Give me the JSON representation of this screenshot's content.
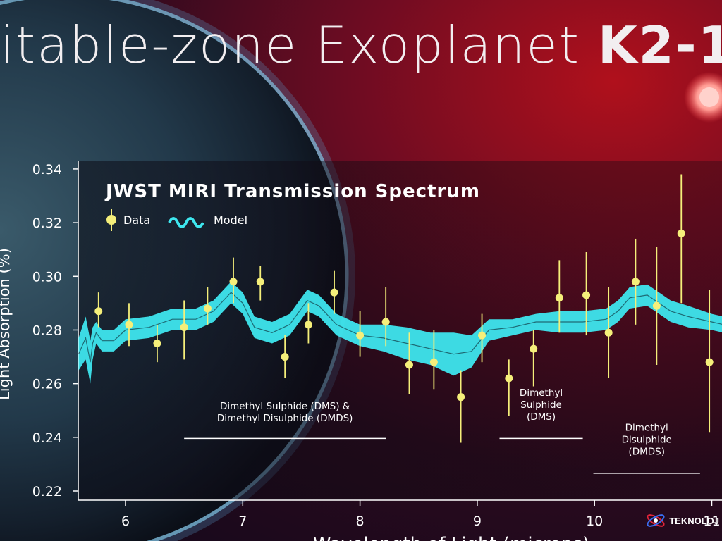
{
  "headline": {
    "prefix": "itable-zone Exoplanet ",
    "bold": "K2-1"
  },
  "logo": {
    "text": "TEKNOLOJ"
  },
  "colors": {
    "data_point": "#f5ef7a",
    "model": "#3ee6ee",
    "model_line": "#1e6a74",
    "axis_text": "#ffffff"
  },
  "chart_data": {
    "type": "scatter",
    "title": "JWST MIRI Transmission Spectrum",
    "xlabel": "Wavelength of Light (microns)",
    "ylabel": "Light Absorption (%)",
    "xlim": [
      5.6,
      11.1
    ],
    "ylim": [
      0.215,
      0.345
    ],
    "x_ticks": [
      6,
      7,
      8,
      9,
      10,
      11
    ],
    "x_tick_labels": [
      "6",
      "7",
      "8",
      "9",
      "10",
      "11"
    ],
    "y_ticks": [
      0.22,
      0.24,
      0.26,
      0.28,
      0.3,
      0.32,
      0.34
    ],
    "y_tick_labels": [
      "0.22",
      "0.24",
      "0.26",
      "0.28",
      "0.30",
      "0.32",
      "0.34"
    ],
    "grid": false,
    "legend": {
      "placement": "top-left",
      "entries": [
        "Data",
        "Model"
      ]
    },
    "series": [
      {
        "name": "Data",
        "kind": "points_with_errorbars",
        "x": [
          5.77,
          6.03,
          6.27,
          6.5,
          6.7,
          6.92,
          7.15,
          7.36,
          7.56,
          7.78,
          8.0,
          8.22,
          8.42,
          8.63,
          8.86,
          9.04,
          9.27,
          9.48,
          9.7,
          9.93,
          10.12,
          10.35,
          10.53,
          10.74,
          10.98
        ],
        "y": [
          0.287,
          0.282,
          0.275,
          0.281,
          0.288,
          0.298,
          0.298,
          0.27,
          0.282,
          0.294,
          0.278,
          0.283,
          0.267,
          0.268,
          0.255,
          0.278,
          0.262,
          0.273,
          0.292,
          0.293,
          0.279,
          0.298,
          0.289,
          0.316,
          0.268
        ],
        "err_low": [
          0.006,
          0.008,
          0.007,
          0.012,
          0.006,
          0.008,
          0.007,
          0.008,
          0.007,
          0.008,
          0.008,
          0.009,
          0.011,
          0.01,
          0.017,
          0.01,
          0.014,
          0.014,
          0.013,
          0.015,
          0.017,
          0.016,
          0.022,
          0.026,
          0.026
        ],
        "err_high": [
          0.007,
          0.008,
          0.007,
          0.01,
          0.008,
          0.009,
          0.006,
          0.008,
          0.008,
          0.008,
          0.009,
          0.013,
          0.012,
          0.012,
          0.01,
          0.008,
          0.007,
          0.007,
          0.014,
          0.016,
          0.017,
          0.016,
          0.022,
          0.022,
          0.027
        ]
      },
      {
        "name": "Model",
        "kind": "band",
        "x": [
          5.6,
          5.66,
          5.7,
          5.72,
          5.75,
          5.8,
          5.9,
          6.0,
          6.2,
          6.4,
          6.6,
          6.75,
          6.9,
          7.0,
          7.1,
          7.25,
          7.4,
          7.55,
          7.65,
          7.8,
          8.0,
          8.2,
          8.4,
          8.6,
          8.8,
          8.95,
          9.1,
          9.3,
          9.5,
          9.7,
          9.9,
          10.1,
          10.2,
          10.3,
          10.45,
          10.55,
          10.65,
          10.8,
          11.0,
          11.1
        ],
        "y": [
          0.271,
          0.277,
          0.268,
          0.275,
          0.279,
          0.276,
          0.276,
          0.28,
          0.281,
          0.284,
          0.284,
          0.287,
          0.294,
          0.29,
          0.281,
          0.279,
          0.282,
          0.291,
          0.289,
          0.282,
          0.278,
          0.277,
          0.275,
          0.273,
          0.271,
          0.272,
          0.28,
          0.281,
          0.283,
          0.283,
          0.283,
          0.284,
          0.287,
          0.292,
          0.293,
          0.29,
          0.287,
          0.285,
          0.283,
          0.282
        ],
        "half_width": [
          0.006,
          0.008,
          0.008,
          0.006,
          0.004,
          0.004,
          0.004,
          0.004,
          0.004,
          0.004,
          0.004,
          0.004,
          0.004,
          0.004,
          0.004,
          0.004,
          0.004,
          0.004,
          0.004,
          0.004,
          0.004,
          0.005,
          0.006,
          0.006,
          0.008,
          0.006,
          0.004,
          0.003,
          0.003,
          0.004,
          0.004,
          0.004,
          0.004,
          0.004,
          0.004,
          0.004,
          0.004,
          0.004,
          0.003,
          0.003
        ]
      }
    ],
    "annotations": [
      {
        "lines": [
          "Dimethyl Sulphide (DMS) &",
          "Dimethyl Disulphide (DMDS)"
        ],
        "x_range": [
          6.5,
          8.22
        ],
        "text_y": 0.2505,
        "bar_y": 0.2396
      },
      {
        "lines": [
          "Dimethyl",
          "Sulphide",
          "(DMS)"
        ],
        "x_range": [
          9.19,
          9.9
        ],
        "text_y": 0.2555,
        "bar_y": 0.2396
      },
      {
        "lines": [
          "Dimethyl",
          "Disulphide",
          "(DMDS)"
        ],
        "x_range": [
          9.99,
          10.9
        ],
        "text_y": 0.2425,
        "bar_y": 0.2266
      }
    ]
  }
}
